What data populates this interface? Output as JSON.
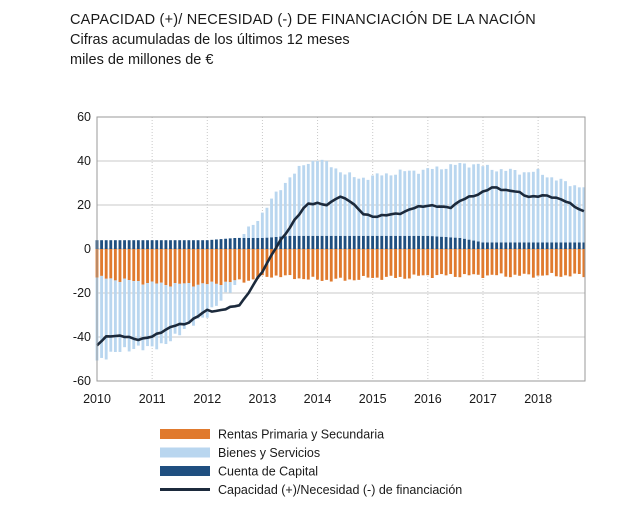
{
  "chart_data": {
    "type": "bar",
    "title": "CAPACIDAD (+)/ NECESIDAD (-) DE FINANCIACIÓN DE LA NACIÓN",
    "subtitle": "Cifras acumuladas de los últimos 12 meses",
    "ylabel": "miles de millones de €",
    "xlabel": "",
    "ylim": [
      -60,
      60
    ],
    "yticks": [
      60,
      40,
      20,
      0,
      -20,
      -40,
      -60
    ],
    "xticks": [
      "2010",
      "2011",
      "2012",
      "2013",
      "2014",
      "2015",
      "2016",
      "2017",
      "2018"
    ],
    "grid": true,
    "colors": {
      "rentas": "#e07a2e",
      "bienes": "#b9d6ef",
      "capital": "#1f4f80",
      "line": "#1c2a3c",
      "grid": "#c9c9c9"
    },
    "legend": [
      {
        "key": "rentas",
        "label": "Rentas Primaria y Secundaria"
      },
      {
        "key": "bienes",
        "label": "Bienes y Servicios"
      },
      {
        "key": "capital",
        "label": "Cuenta de Capital"
      },
      {
        "key": "line",
        "label": "Capacidad (+)/Necesidad (-) de financiación"
      }
    ],
    "x_start": 2010.0,
    "x_end": 2018.85,
    "bar_step_years": 0.0833,
    "series_keyframes": {
      "rentas": [
        [
          2010.0,
          -13
        ],
        [
          2010.4,
          -14
        ],
        [
          2010.8,
          -15
        ],
        [
          2011.2,
          -16
        ],
        [
          2011.6,
          -16
        ],
        [
          2012.0,
          -16
        ],
        [
          2012.4,
          -15
        ],
        [
          2012.8,
          -14
        ],
        [
          2013.2,
          -12
        ],
        [
          2013.6,
          -13
        ],
        [
          2014.0,
          -14
        ],
        [
          2014.5,
          -14
        ],
        [
          2015.0,
          -13
        ],
        [
          2015.5,
          -13
        ],
        [
          2016.0,
          -12
        ],
        [
          2016.5,
          -12
        ],
        [
          2017.0,
          -12
        ],
        [
          2017.5,
          -12
        ],
        [
          2018.0,
          -12
        ],
        [
          2018.85,
          -12
        ]
      ],
      "bienes": [
        [
          2010.0,
          -38
        ],
        [
          2010.4,
          -32
        ],
        [
          2010.8,
          -30
        ],
        [
          2011.2,
          -28
        ],
        [
          2011.6,
          -20
        ],
        [
          2012.0,
          -14
        ],
        [
          2012.4,
          -4
        ],
        [
          2012.8,
          5
        ],
        [
          2013.2,
          18
        ],
        [
          2013.5,
          27
        ],
        [
          2013.8,
          33
        ],
        [
          2014.0,
          35
        ],
        [
          2014.3,
          31
        ],
        [
          2014.7,
          26
        ],
        [
          2015.0,
          27
        ],
        [
          2015.5,
          29
        ],
        [
          2016.0,
          30
        ],
        [
          2016.5,
          33
        ],
        [
          2016.9,
          35
        ],
        [
          2017.3,
          33
        ],
        [
          2017.7,
          32
        ],
        [
          2018.0,
          32
        ],
        [
          2018.5,
          27
        ],
        [
          2018.85,
          25
        ]
      ],
      "capital": [
        [
          2010.0,
          4
        ],
        [
          2011.0,
          4
        ],
        [
          2012.0,
          4
        ],
        [
          2012.5,
          5
        ],
        [
          2013.0,
          5
        ],
        [
          2013.5,
          6
        ],
        [
          2014.0,
          6
        ],
        [
          2014.6,
          6
        ],
        [
          2015.0,
          6
        ],
        [
          2016.0,
          6
        ],
        [
          2016.6,
          5
        ],
        [
          2017.0,
          3
        ],
        [
          2018.0,
          3
        ],
        [
          2018.85,
          3
        ]
      ],
      "line": [
        [
          2010.0,
          -44
        ],
        [
          2010.2,
          -39
        ],
        [
          2010.5,
          -40
        ],
        [
          2010.8,
          -41
        ],
        [
          2011.0,
          -40
        ],
        [
          2011.2,
          -37
        ],
        [
          2011.4,
          -35
        ],
        [
          2011.6,
          -34
        ],
        [
          2011.8,
          -31
        ],
        [
          2012.0,
          -28
        ],
        [
          2012.2,
          -28
        ],
        [
          2012.4,
          -27
        ],
        [
          2012.6,
          -25
        ],
        [
          2012.8,
          -18
        ],
        [
          2013.0,
          -10
        ],
        [
          2013.2,
          -1
        ],
        [
          2013.4,
          6
        ],
        [
          2013.6,
          14
        ],
        [
          2013.8,
          20
        ],
        [
          2014.0,
          21
        ],
        [
          2014.2,
          20
        ],
        [
          2014.4,
          24
        ],
        [
          2014.6,
          22
        ],
        [
          2014.8,
          16
        ],
        [
          2015.0,
          15
        ],
        [
          2015.2,
          15
        ],
        [
          2015.4,
          16
        ],
        [
          2015.6,
          17
        ],
        [
          2015.8,
          19
        ],
        [
          2016.0,
          20
        ],
        [
          2016.2,
          19
        ],
        [
          2016.4,
          19
        ],
        [
          2016.6,
          22
        ],
        [
          2016.8,
          24
        ],
        [
          2017.0,
          26
        ],
        [
          2017.2,
          28
        ],
        [
          2017.4,
          27
        ],
        [
          2017.6,
          26
        ],
        [
          2017.8,
          24
        ],
        [
          2018.0,
          24
        ],
        [
          2018.2,
          24
        ],
        [
          2018.4,
          23
        ],
        [
          2018.6,
          20
        ],
        [
          2018.85,
          17
        ]
      ]
    }
  }
}
